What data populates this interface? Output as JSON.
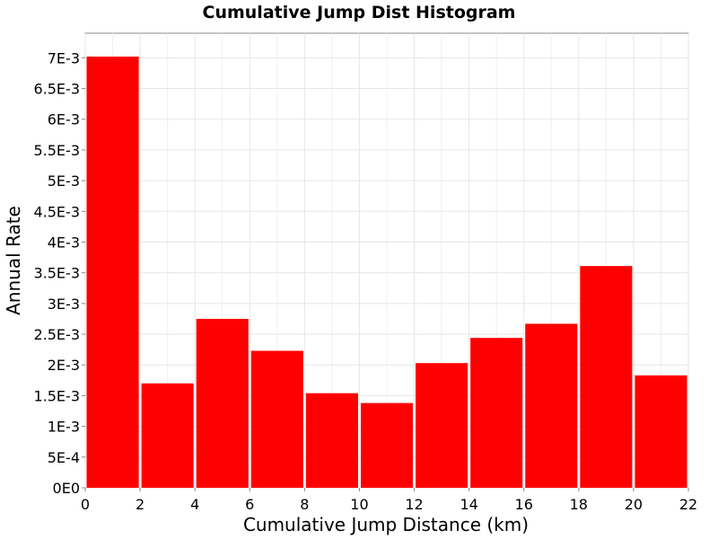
{
  "chart_data": {
    "type": "bar",
    "title": "Cumulative Jump Dist Histogram",
    "xlabel": "Cumulative Jump Distance (km)",
    "ylabel": "Annual Rate",
    "xlim": [
      0,
      22
    ],
    "ylim": [
      0,
      0.0074
    ],
    "grid": true,
    "legend": "none",
    "bar_color": "#ff0000",
    "x_ticks": [
      {
        "value": 0,
        "label": "0"
      },
      {
        "value": 2,
        "label": "2"
      },
      {
        "value": 4,
        "label": "4"
      },
      {
        "value": 6,
        "label": "6"
      },
      {
        "value": 8,
        "label": "8"
      },
      {
        "value": 10,
        "label": "10"
      },
      {
        "value": 12,
        "label": "12"
      },
      {
        "value": 14,
        "label": "14"
      },
      {
        "value": 16,
        "label": "16"
      },
      {
        "value": 18,
        "label": "18"
      },
      {
        "value": 20,
        "label": "20"
      },
      {
        "value": 22,
        "label": "22"
      }
    ],
    "y_ticks": [
      {
        "value": 0,
        "label": "0E0"
      },
      {
        "value": 0.0005,
        "label": "5E-4"
      },
      {
        "value": 0.001,
        "label": "1E-3"
      },
      {
        "value": 0.0015,
        "label": "1.5E-3"
      },
      {
        "value": 0.002,
        "label": "2E-3"
      },
      {
        "value": 0.0025,
        "label": "2.5E-3"
      },
      {
        "value": 0.003,
        "label": "3E-3"
      },
      {
        "value": 0.0035,
        "label": "3.5E-3"
      },
      {
        "value": 0.004,
        "label": "4E-3"
      },
      {
        "value": 0.0045,
        "label": "4.5E-3"
      },
      {
        "value": 0.005,
        "label": "5E-3"
      },
      {
        "value": 0.0055,
        "label": "5.5E-3"
      },
      {
        "value": 0.006,
        "label": "6E-3"
      },
      {
        "value": 0.0065,
        "label": "6.5E-3"
      },
      {
        "value": 0.007,
        "label": "7E-3"
      }
    ],
    "bins": [
      {
        "start": 0,
        "end": 2,
        "value": 0.00702
      },
      {
        "start": 2,
        "end": 4,
        "value": 0.0017
      },
      {
        "start": 4,
        "end": 6,
        "value": 0.00275
      },
      {
        "start": 6,
        "end": 8,
        "value": 0.00223
      },
      {
        "start": 8,
        "end": 10,
        "value": 0.00154
      },
      {
        "start": 10,
        "end": 12,
        "value": 0.00138
      },
      {
        "start": 12,
        "end": 14,
        "value": 0.00203
      },
      {
        "start": 14,
        "end": 16,
        "value": 0.00244
      },
      {
        "start": 16,
        "end": 18,
        "value": 0.00267
      },
      {
        "start": 18,
        "end": 20,
        "value": 0.00361
      },
      {
        "start": 20,
        "end": 22,
        "value": 0.00183
      }
    ]
  }
}
